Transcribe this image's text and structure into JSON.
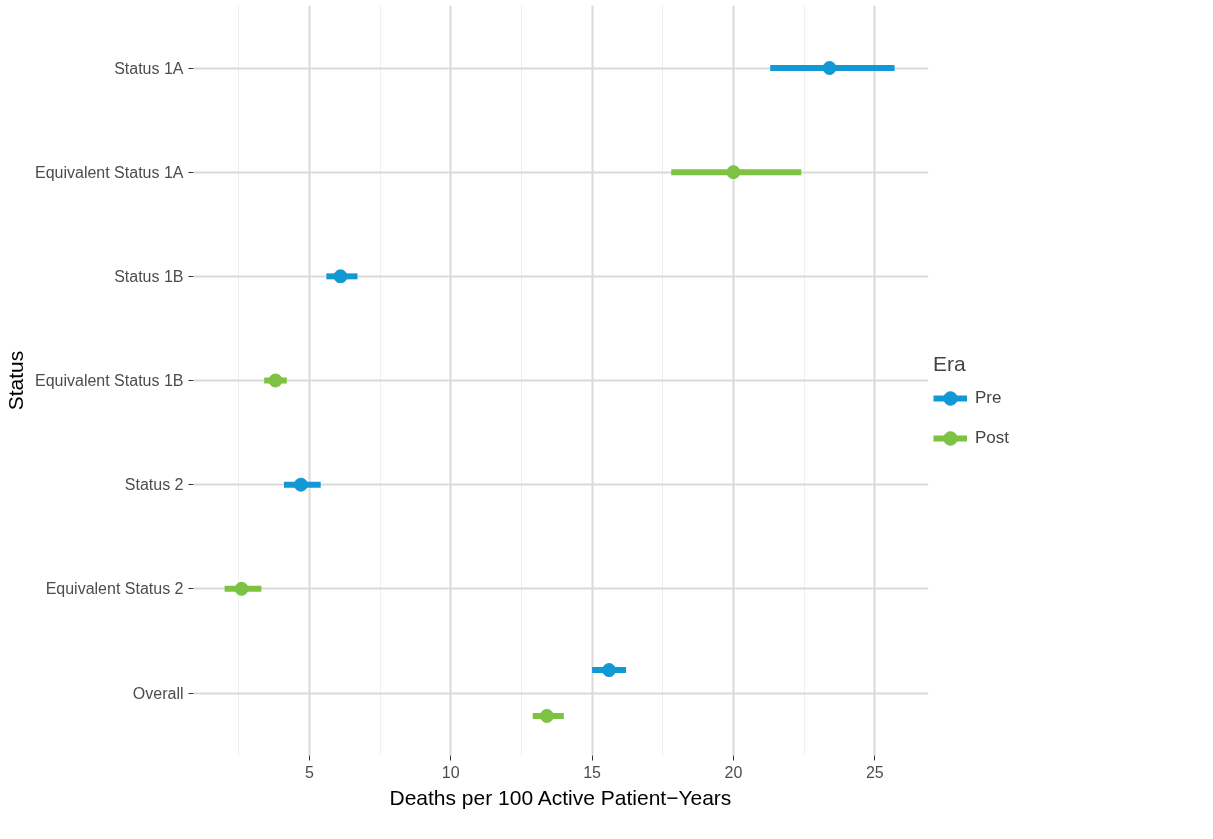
{
  "chart_data": {
    "type": "scatter",
    "orientation": "horizontal",
    "xlabel": "Deaths per 100 Active Patient−Years",
    "ylabel": "Status",
    "legend_title": "Era",
    "legend": "right",
    "grid": true,
    "marker": "circle",
    "categories": [
      "Status 1A",
      "Equivalent Status 1A",
      "Status 1B",
      "Equivalent Status 1B",
      "Status 2",
      "Equivalent Status 2",
      "Overall"
    ],
    "xlim": [
      0.9,
      26.9
    ],
    "xticks": [
      5,
      10,
      15,
      20,
      25
    ],
    "series": [
      {
        "name": "Pre",
        "color": "#1199d6",
        "values": [
          23.4,
          null,
          6.1,
          null,
          4.7,
          null,
          15.6
        ],
        "errors": [
          [
            21.3,
            25.7
          ],
          null,
          [
            5.6,
            6.7
          ],
          null,
          [
            4.1,
            5.4
          ],
          null,
          [
            15.0,
            16.2
          ]
        ]
      },
      {
        "name": "Post",
        "color": "#7dc242",
        "values": [
          null,
          20.0,
          null,
          3.8,
          null,
          2.6,
          13.4
        ],
        "errors": [
          null,
          [
            17.8,
            22.4
          ],
          null,
          [
            3.4,
            4.2
          ],
          null,
          [
            2.0,
            3.3
          ],
          [
            12.9,
            14.0
          ]
        ]
      }
    ]
  }
}
